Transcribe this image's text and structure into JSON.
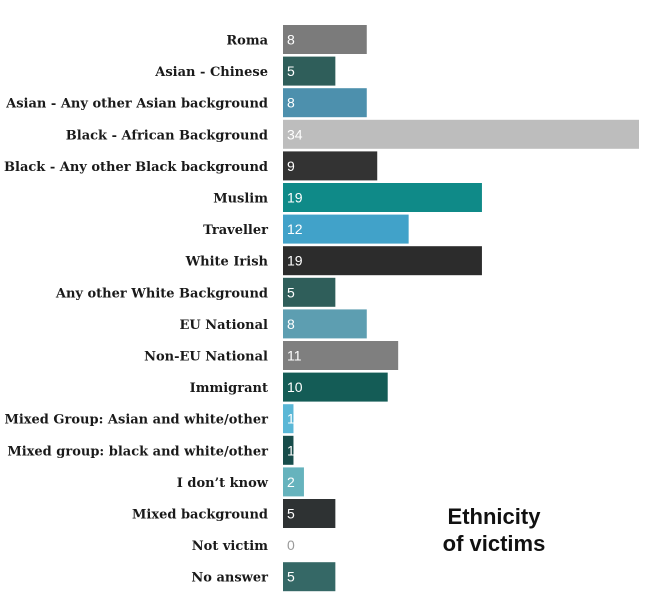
{
  "chart_data": {
    "type": "bar",
    "orientation": "horizontal",
    "title_lines": [
      "Ethnicity",
      "of victims"
    ],
    "categories": [
      "Roma",
      "Asian - Chinese",
      "Asian - Any other Asian background",
      "Black - African Background",
      "Black - Any other Black background",
      "Muslim",
      "Traveller",
      "White Irish",
      "Any other White Background",
      "EU National",
      "Non-EU National",
      "Immigrant",
      "Mixed Group: Asian and white/other",
      "Mixed group: black and white/other",
      "I don’t know",
      "Mixed background",
      "Not victim",
      "No answer"
    ],
    "values": [
      8,
      5,
      8,
      34,
      9,
      19,
      12,
      19,
      5,
      8,
      11,
      10,
      1,
      1,
      2,
      5,
      0,
      5
    ],
    "colors": [
      "#7b7b7b",
      "#2f5e5a",
      "#4d90ad",
      "#bdbdbd",
      "#333333",
      "#0f8a88",
      "#41a2c9",
      "#2c2c2c",
      "#2f5e5a",
      "#5d9eb1",
      "#7f7f7f",
      "#145c56",
      "#5ab7d6",
      "#174c4a",
      "#66b3bd",
      "#2e3233",
      "#ffffff",
      "#356866"
    ],
    "xlim": [
      0,
      34
    ],
    "grid": false,
    "legend": "none"
  }
}
